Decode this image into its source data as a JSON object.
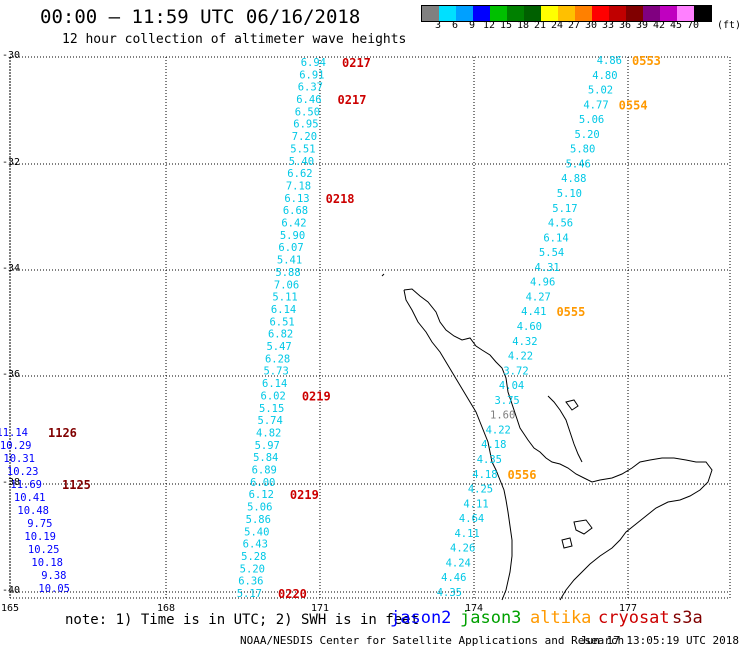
{
  "title": "00:00 – 11:59 UTC 06/16/2018",
  "subtitle": "12 hour collection of altimeter wave heights",
  "legend": {
    "colors": [
      "#808080",
      "#00e0ff",
      "#00a0ff",
      "#0000ff",
      "#00c000",
      "#008000",
      "#006000",
      "#ffff00",
      "#ffc000",
      "#ff8000",
      "#ff0000",
      "#c00000",
      "#800000",
      "#800080",
      "#c000c0",
      "#ff80ff",
      "#000000"
    ],
    "labels": [
      "3",
      "6",
      "9",
      "12",
      "15",
      "18",
      "21",
      "24",
      "27",
      "30",
      "33",
      "36",
      "39",
      "42",
      "45",
      "70"
    ],
    "unit": "(ft)"
  },
  "lat_ticks": [
    "-30",
    "-32",
    "-34",
    "-36",
    "-38",
    "-40"
  ],
  "lon_ticks": [
    "165",
    "168",
    "171",
    "174",
    "177"
  ],
  "footnote": "note: 1) Time is in UTC; 2) SWH is in feet",
  "satellites": [
    {
      "name": "jason2",
      "color": "#0000ff"
    },
    {
      "name": "jason3",
      "color": "#00a000"
    },
    {
      "name": "altika",
      "color": "#ff9900"
    },
    {
      "name": "cryosat",
      "color": "#cc0000"
    },
    {
      "name": "s3a",
      "color": "#800000"
    }
  ],
  "credit": "NOAA/NESDIS Center for Satellite Applications and Research",
  "stamp": "Jun 17 13:05:19 UTC 2018",
  "colors": {
    "jason2": "#0000ff",
    "s3a": "#800000",
    "altika_time": "#ff9900",
    "cryosat_time": "#cc0000",
    "swh_cyan": "#00c8e6",
    "grid": "#000000",
    "coast": "#000000"
  },
  "tracks": [
    {
      "satellite": "s3a",
      "color": "#00c8e6",
      "values": [
        "6.94",
        "6.91",
        "6.37",
        "6.46",
        "6.50",
        "6.95",
        "7.20",
        "5.51",
        "5.40",
        "6.62",
        "7.18",
        "6.13",
        "6.68",
        "6.42",
        "5.90",
        "6.07",
        "5.41",
        "5.88",
        "7.06",
        "5.11",
        "6.14",
        "6.51",
        "6.82",
        "5.47",
        "6.28",
        "5.73",
        "6.14",
        "6.02",
        "5.15",
        "5.74",
        "4.82",
        "5.97",
        "5.84",
        "6.89",
        "6.00",
        "6.12",
        "5.06",
        "5.86",
        "5.40",
        "6.43",
        "5.28",
        "5.20",
        "6.36",
        "5.17"
      ],
      "times": [
        {
          "label": "0217",
          "at": 0,
          "color": "#cc0000"
        },
        {
          "label": "0217",
          "at": 3,
          "color": "#cc0000"
        },
        {
          "label": "0218",
          "at": 11,
          "color": "#cc0000"
        },
        {
          "label": "0219",
          "at": 27,
          "color": "#cc0000"
        },
        {
          "label": "0219",
          "at": 35,
          "color": "#cc0000"
        },
        {
          "label": "0220",
          "at": 43,
          "color": "#cc0000"
        }
      ]
    },
    {
      "satellite": "altika",
      "color": "#00c8e6",
      "values": [
        "4.86",
        "4.80",
        "5.02",
        "4.77",
        "5.06",
        "5.20",
        "5.80",
        "5.46",
        "4.88",
        "5.10",
        "5.17",
        "4.56",
        "6.14",
        "5.54",
        "4.31",
        "4.96",
        "4.27",
        "4.41",
        "4.60",
        "4.32",
        "4.22",
        "3.72",
        "4.04",
        "3.75",
        "1.60",
        "4.22",
        "4.18",
        "4.35",
        "4.18",
        "4.25",
        "4.11",
        "4.64",
        "4.11",
        "4.26",
        "4.24",
        "4.46",
        "4.35"
      ],
      "times": [
        {
          "label": "0553",
          "at": 0,
          "color": "#ff9900"
        },
        {
          "label": "0554",
          "at": 3,
          "color": "#ff9900"
        },
        {
          "label": "0555",
          "at": 17,
          "color": "#ff9900"
        },
        {
          "label": "0556",
          "at": 28,
          "color": "#ff9900"
        }
      ]
    },
    {
      "satellite": "jason2",
      "color": "#0000ff",
      "values": [
        "11.14",
        "10.29",
        "10.31",
        "10.23",
        "11.69",
        "10.41",
        "10.48",
        "9.75",
        "10.19",
        "10.25",
        "10.18",
        "9.38",
        "10.05"
      ],
      "times": [
        {
          "label": "1126",
          "at": 0,
          "color": "#800000"
        },
        {
          "label": "1125",
          "at": 4,
          "color": "#800000"
        }
      ]
    }
  ]
}
